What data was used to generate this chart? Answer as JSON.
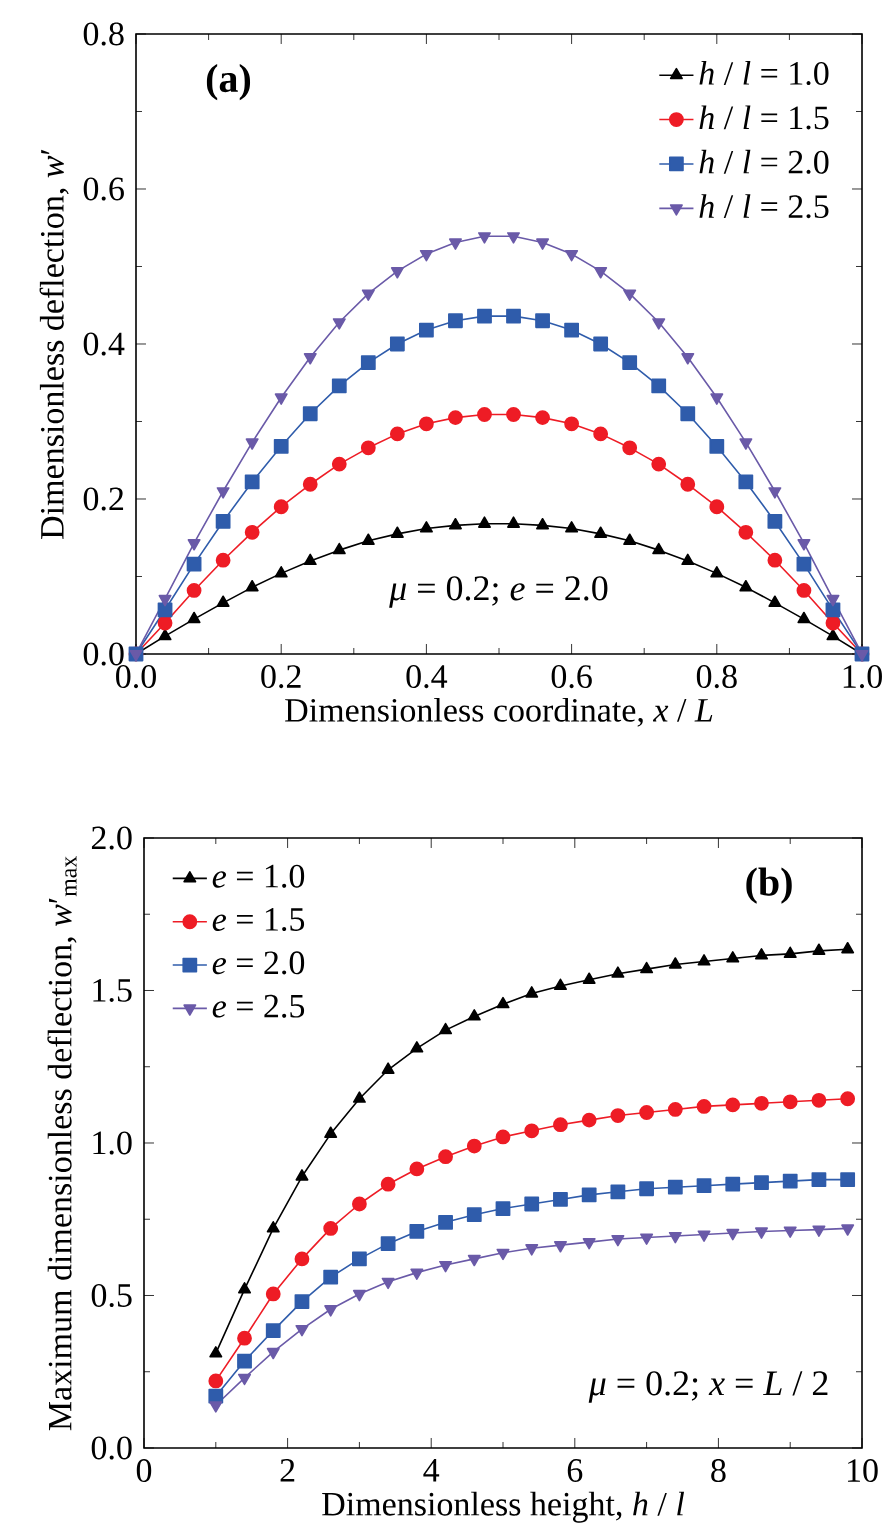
{
  "chart_data": [
    {
      "type": "line",
      "title": "(a)",
      "xlabel": "Dimensionless coordinate, *x* / *L*",
      "ylabel": "Dimensionless deflection, *w*′",
      "annotations": [
        "*μ* = 0.2; *e* = 2.0"
      ],
      "x": [
        0,
        0.04,
        0.08,
        0.12,
        0.16,
        0.2,
        0.24,
        0.28,
        0.32,
        0.36,
        0.4,
        0.44,
        0.48,
        0.52,
        0.56,
        0.6,
        0.64,
        0.68,
        0.72,
        0.76,
        0.8,
        0.84,
        0.88,
        0.92,
        0.96,
        1.0
      ],
      "series": [
        {
          "name": "*h* / *l* = 1.0",
          "color": "#000000",
          "marker": "triangle",
          "values": [
            0,
            0.023,
            0.045,
            0.066,
            0.086,
            0.104,
            0.12,
            0.134,
            0.146,
            0.155,
            0.162,
            0.166,
            0.168,
            0.168,
            0.166,
            0.162,
            0.155,
            0.146,
            0.134,
            0.12,
            0.104,
            0.086,
            0.066,
            0.045,
            0.023,
            0
          ]
        },
        {
          "name": "*h* / *l* = 1.5",
          "color": "#ee1c25",
          "marker": "circle",
          "values": [
            0,
            0.04,
            0.082,
            0.121,
            0.157,
            0.19,
            0.219,
            0.245,
            0.266,
            0.284,
            0.297,
            0.305,
            0.309,
            0.309,
            0.305,
            0.297,
            0.284,
            0.266,
            0.245,
            0.219,
            0.19,
            0.157,
            0.121,
            0.082,
            0.04,
            0
          ]
        },
        {
          "name": "*h* / *l* = 2.0",
          "color": "#2f5cab",
          "marker": "square",
          "values": [
            0,
            0.057,
            0.116,
            0.171,
            0.222,
            0.268,
            0.31,
            0.346,
            0.376,
            0.4,
            0.418,
            0.43,
            0.436,
            0.436,
            0.43,
            0.418,
            0.4,
            0.376,
            0.346,
            0.31,
            0.268,
            0.222,
            0.171,
            0.116,
            0.057,
            0
          ]
        },
        {
          "name": "*h* / *l* = 2.5",
          "color": "#6a5aa8",
          "marker": "triangle-down",
          "values": [
            0,
            0.071,
            0.143,
            0.21,
            0.273,
            0.331,
            0.383,
            0.428,
            0.465,
            0.494,
            0.516,
            0.531,
            0.539,
            0.539,
            0.531,
            0.516,
            0.494,
            0.465,
            0.428,
            0.383,
            0.331,
            0.273,
            0.21,
            0.143,
            0.071,
            0
          ]
        }
      ],
      "xlim": [
        0,
        1
      ],
      "ylim": [
        0,
        0.8
      ],
      "xticks": [
        {
          "value": 0,
          "label": "0.0"
        },
        0.2,
        0.4,
        0.6,
        0.8,
        {
          "value": 1,
          "label": "1.0"
        }
      ],
      "yticks": [
        {
          "value": 0,
          "label": "0.0"
        },
        0.2,
        0.4,
        0.6,
        0.8
      ],
      "grid": false,
      "legend": "top right",
      "line_style": "solid"
    },
    {
      "type": "line",
      "title": "(b)",
      "xlabel": "Dimensionless height, *h* / *l*",
      "ylabel": "Maximum dimensionless deflection, *w*′$_{max}$",
      "annotations": [
        "*μ* = 0.2; *x* = *L* / 2"
      ],
      "x": [
        1.0,
        1.4,
        1.8,
        2.2,
        2.6,
        3.0,
        3.4,
        3.8,
        4.2,
        4.6,
        5.0,
        5.4,
        5.8,
        6.2,
        6.6,
        7.0,
        7.4,
        7.8,
        8.2,
        8.6,
        9.0,
        9.4,
        9.8
      ],
      "series": [
        {
          "name": "*e* = 1.0",
          "color": "#000000",
          "marker": "triangle",
          "values": [
            0.31,
            0.52,
            0.72,
            0.89,
            1.03,
            1.145,
            1.24,
            1.31,
            1.37,
            1.415,
            1.455,
            1.49,
            1.515,
            1.535,
            1.555,
            1.57,
            1.585,
            1.595,
            1.605,
            1.615,
            1.62,
            1.63,
            1.635
          ]
        },
        {
          "name": "*e* = 1.5",
          "color": "#ee1c25",
          "marker": "circle",
          "values": [
            0.22,
            0.36,
            0.505,
            0.62,
            0.72,
            0.8,
            0.865,
            0.915,
            0.955,
            0.99,
            1.02,
            1.04,
            1.06,
            1.075,
            1.09,
            1.1,
            1.11,
            1.12,
            1.125,
            1.13,
            1.135,
            1.14,
            1.145
          ]
        },
        {
          "name": "*e* = 2.0",
          "color": "#2f5cab",
          "marker": "square",
          "values": [
            0.17,
            0.285,
            0.385,
            0.48,
            0.56,
            0.62,
            0.67,
            0.71,
            0.74,
            0.765,
            0.785,
            0.8,
            0.815,
            0.83,
            0.84,
            0.85,
            0.855,
            0.86,
            0.865,
            0.87,
            0.875,
            0.88,
            0.88
          ]
        },
        {
          "name": "*e* = 2.5",
          "color": "#6a5aa8",
          "marker": "triangle-down",
          "values": [
            0.14,
            0.23,
            0.315,
            0.39,
            0.455,
            0.505,
            0.545,
            0.575,
            0.6,
            0.62,
            0.64,
            0.655,
            0.665,
            0.675,
            0.685,
            0.69,
            0.695,
            0.7,
            0.705,
            0.71,
            0.713,
            0.716,
            0.72
          ]
        }
      ],
      "xlim": [
        0,
        10
      ],
      "ylim": [
        0,
        2
      ],
      "xticks": [
        0,
        2,
        4,
        6,
        8,
        10
      ],
      "yticks": [
        {
          "value": 0,
          "label": "0.0"
        },
        0.5,
        {
          "value": 1,
          "label": "1.0"
        },
        1.5,
        {
          "value": 2,
          "label": "2.0"
        }
      ],
      "grid": false,
      "legend": "top left",
      "line_style": "solid"
    }
  ]
}
